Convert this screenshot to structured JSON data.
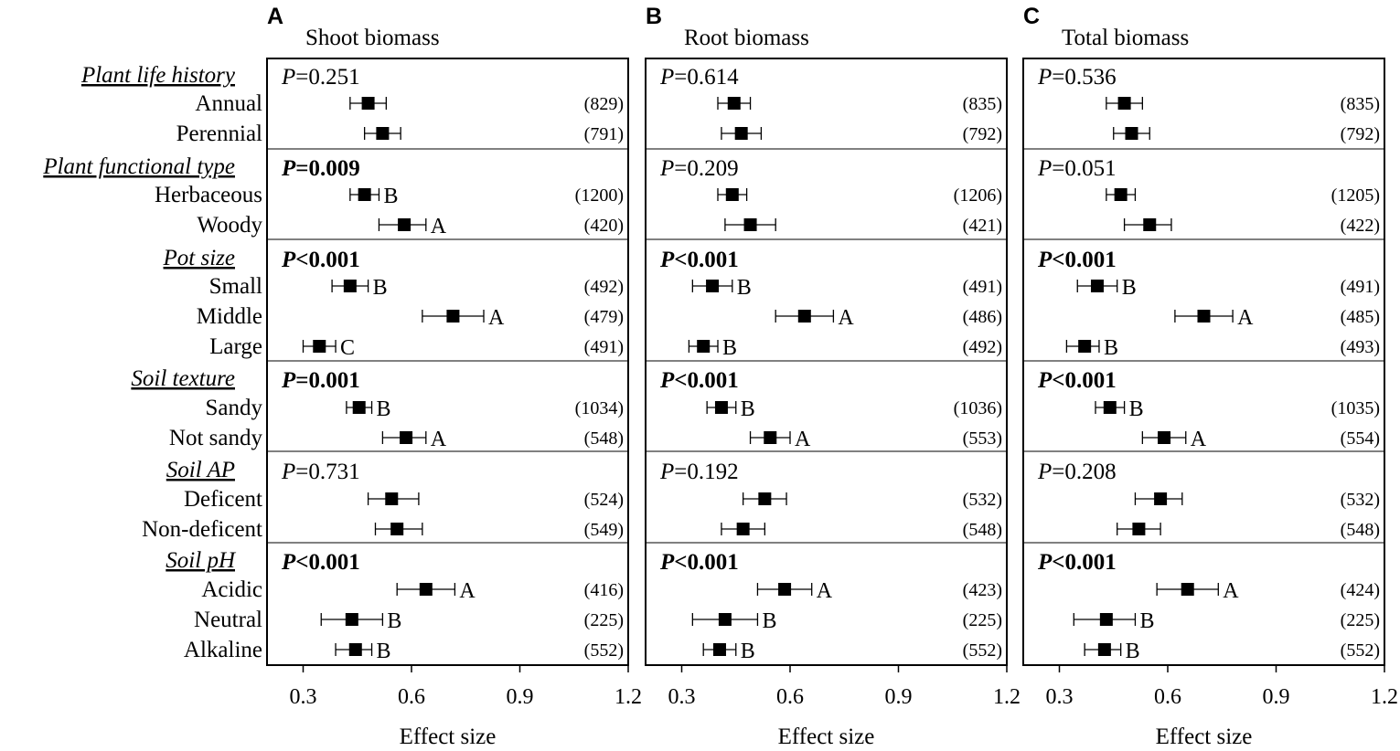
{
  "chart_data": {
    "type": "forest",
    "xlabel": "Effect size",
    "xlim": [
      0.2,
      1.2
    ],
    "xticks": [
      0.3,
      0.6,
      0.9,
      1.2
    ],
    "xtick_labels": [
      "0.3",
      "0.6",
      "0.9",
      "1.2"
    ],
    "groups": [
      {
        "title": "Plant life history",
        "levels": [
          "Annual",
          "Perennial"
        ]
      },
      {
        "title": "Plant  functional type",
        "levels": [
          "Herbaceous",
          "Woody"
        ]
      },
      {
        "title": "Pot size",
        "levels": [
          "Small",
          "Middle",
          "Large"
        ]
      },
      {
        "title": "Soil texture",
        "levels": [
          "Sandy",
          "Not sandy"
        ]
      },
      {
        "title": "Soil AP",
        "levels": [
          "Deficent",
          "Non-deficent"
        ]
      },
      {
        "title": "Soil pH",
        "levels": [
          "Acidic",
          "Neutral",
          "Alkaline"
        ]
      }
    ],
    "panels": [
      {
        "letter": "A",
        "title": "Shoot biomass",
        "groups": [
          {
            "p": "=0.251",
            "bold": false,
            "rows": [
              {
                "mean": 0.48,
                "lo": 0.43,
                "hi": 0.53,
                "letter": "",
                "n": "(829)"
              },
              {
                "mean": 0.52,
                "lo": 0.47,
                "hi": 0.57,
                "letter": "",
                "n": "(791)"
              }
            ]
          },
          {
            "p": "=0.009",
            "bold": true,
            "rows": [
              {
                "mean": 0.47,
                "lo": 0.43,
                "hi": 0.51,
                "letter": "B",
                "n": "(1200)"
              },
              {
                "mean": 0.58,
                "lo": 0.51,
                "hi": 0.64,
                "letter": "A",
                "n": "(420)"
              }
            ]
          },
          {
            "p": "<0.001",
            "bold": true,
            "rows": [
              {
                "mean": 0.43,
                "lo": 0.38,
                "hi": 0.48,
                "letter": "B",
                "n": "(492)"
              },
              {
                "mean": 0.715,
                "lo": 0.63,
                "hi": 0.8,
                "letter": "A",
                "n": "(479)"
              },
              {
                "mean": 0.345,
                "lo": 0.3,
                "hi": 0.39,
                "letter": "C",
                "n": "(491)"
              }
            ]
          },
          {
            "p": "=0.001",
            "bold": true,
            "rows": [
              {
                "mean": 0.455,
                "lo": 0.42,
                "hi": 0.49,
                "letter": "B",
                "n": "(1034)"
              },
              {
                "mean": 0.585,
                "lo": 0.52,
                "hi": 0.64,
                "letter": "A",
                "n": "(548)"
              }
            ]
          },
          {
            "p": "=0.731",
            "bold": false,
            "rows": [
              {
                "mean": 0.545,
                "lo": 0.48,
                "hi": 0.62,
                "letter": "",
                "n": "(524)"
              },
              {
                "mean": 0.56,
                "lo": 0.5,
                "hi": 0.63,
                "letter": "",
                "n": "(549)"
              }
            ]
          },
          {
            "p": "<0.001",
            "bold": true,
            "rows": [
              {
                "mean": 0.64,
                "lo": 0.56,
                "hi": 0.72,
                "letter": "A",
                "n": "(416)"
              },
              {
                "mean": 0.435,
                "lo": 0.35,
                "hi": 0.52,
                "letter": "B",
                "n": "(225)"
              },
              {
                "mean": 0.445,
                "lo": 0.39,
                "hi": 0.49,
                "letter": "B",
                "n": "(552)"
              }
            ]
          }
        ]
      },
      {
        "letter": "B",
        "title": "Root biomass",
        "groups": [
          {
            "p": "=0.614",
            "bold": false,
            "rows": [
              {
                "mean": 0.445,
                "lo": 0.4,
                "hi": 0.49,
                "letter": "",
                "n": "(835)"
              },
              {
                "mean": 0.465,
                "lo": 0.41,
                "hi": 0.52,
                "letter": "",
                "n": "(792)"
              }
            ]
          },
          {
            "p": "=0.209",
            "bold": false,
            "rows": [
              {
                "mean": 0.44,
                "lo": 0.4,
                "hi": 0.48,
                "letter": "",
                "n": "(1206)"
              },
              {
                "mean": 0.49,
                "lo": 0.42,
                "hi": 0.56,
                "letter": "",
                "n": "(421)"
              }
            ]
          },
          {
            "p": "<0.001",
            "bold": true,
            "rows": [
              {
                "mean": 0.385,
                "lo": 0.33,
                "hi": 0.44,
                "letter": "B",
                "n": "(491)"
              },
              {
                "mean": 0.64,
                "lo": 0.56,
                "hi": 0.72,
                "letter": "A",
                "n": "(486)"
              },
              {
                "mean": 0.36,
                "lo": 0.32,
                "hi": 0.4,
                "letter": "B",
                "n": "(492)"
              }
            ]
          },
          {
            "p": "<0.001",
            "bold": true,
            "rows": [
              {
                "mean": 0.41,
                "lo": 0.37,
                "hi": 0.45,
                "letter": "B",
                "n": "(1036)"
              },
              {
                "mean": 0.545,
                "lo": 0.49,
                "hi": 0.6,
                "letter": "A",
                "n": "(553)"
              }
            ]
          },
          {
            "p": "=0.192",
            "bold": false,
            "rows": [
              {
                "mean": 0.53,
                "lo": 0.47,
                "hi": 0.59,
                "letter": "",
                "n": "(532)"
              },
              {
                "mean": 0.47,
                "lo": 0.41,
                "hi": 0.53,
                "letter": "",
                "n": "(548)"
              }
            ]
          },
          {
            "p": "<0.001",
            "bold": true,
            "rows": [
              {
                "mean": 0.585,
                "lo": 0.51,
                "hi": 0.66,
                "letter": "A",
                "n": "(423)"
              },
              {
                "mean": 0.42,
                "lo": 0.33,
                "hi": 0.51,
                "letter": "B",
                "n": "(225)"
              },
              {
                "mean": 0.405,
                "lo": 0.36,
                "hi": 0.45,
                "letter": "B",
                "n": "(552)"
              }
            ]
          }
        ]
      },
      {
        "letter": "C",
        "title": "Total biomass",
        "groups": [
          {
            "p": "=0.536",
            "bold": false,
            "rows": [
              {
                "mean": 0.48,
                "lo": 0.43,
                "hi": 0.53,
                "letter": "",
                "n": "(835)"
              },
              {
                "mean": 0.5,
                "lo": 0.45,
                "hi": 0.55,
                "letter": "",
                "n": "(792)"
              }
            ]
          },
          {
            "p": "=0.051",
            "bold": false,
            "rows": [
              {
                "mean": 0.47,
                "lo": 0.43,
                "hi": 0.51,
                "letter": "",
                "n": "(1205)"
              },
              {
                "mean": 0.55,
                "lo": 0.48,
                "hi": 0.61,
                "letter": "",
                "n": "(422)"
              }
            ]
          },
          {
            "p": "<0.001",
            "bold": true,
            "rows": [
              {
                "mean": 0.405,
                "lo": 0.35,
                "hi": 0.46,
                "letter": "B",
                "n": "(491)"
              },
              {
                "mean": 0.7,
                "lo": 0.62,
                "hi": 0.78,
                "letter": "A",
                "n": "(485)"
              },
              {
                "mean": 0.37,
                "lo": 0.32,
                "hi": 0.41,
                "letter": "B",
                "n": "(493)"
              }
            ]
          },
          {
            "p": "<0.001",
            "bold": true,
            "rows": [
              {
                "mean": 0.44,
                "lo": 0.4,
                "hi": 0.48,
                "letter": "B",
                "n": "(1035)"
              },
              {
                "mean": 0.59,
                "lo": 0.53,
                "hi": 0.65,
                "letter": "A",
                "n": "(554)"
              }
            ]
          },
          {
            "p": "=0.208",
            "bold": false,
            "rows": [
              {
                "mean": 0.58,
                "lo": 0.51,
                "hi": 0.64,
                "letter": "",
                "n": "(532)"
              },
              {
                "mean": 0.52,
                "lo": 0.46,
                "hi": 0.58,
                "letter": "",
                "n": "(548)"
              }
            ]
          },
          {
            "p": "<0.001",
            "bold": true,
            "rows": [
              {
                "mean": 0.655,
                "lo": 0.57,
                "hi": 0.74,
                "letter": "A",
                "n": "(424)"
              },
              {
                "mean": 0.43,
                "lo": 0.34,
                "hi": 0.51,
                "letter": "B",
                "n": "(225)"
              },
              {
                "mean": 0.425,
                "lo": 0.37,
                "hi": 0.47,
                "letter": "B",
                "n": "(552)"
              }
            ]
          }
        ]
      }
    ]
  }
}
